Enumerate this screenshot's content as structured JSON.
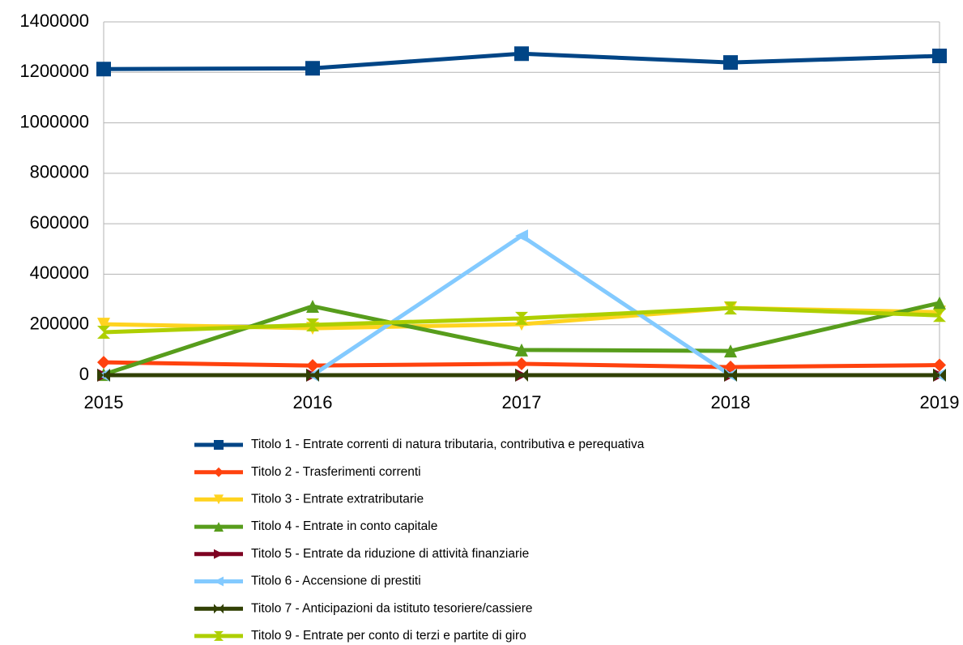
{
  "chart_data": {
    "type": "line",
    "x": [
      "2015",
      "2016",
      "2017",
      "2018",
      "2019"
    ],
    "ylim": [
      0,
      1400000
    ],
    "yticks": [
      0,
      200000,
      400000,
      600000,
      800000,
      1000000,
      1200000,
      1400000
    ],
    "grid": true,
    "legend": "bottom",
    "series": [
      {
        "name": "Titolo 1 - Entrate correnti di natura tributaria, contributiva e perequativa",
        "color": "#004586",
        "marker": "square",
        "values": [
          1213000,
          1216000,
          1274000,
          1239000,
          1265000
        ]
      },
      {
        "name": "Titolo 2 - Trasferimenti correnti",
        "color": "#ff420e",
        "marker": "diamond",
        "values": [
          51000,
          38000,
          45000,
          32000,
          40000
        ]
      },
      {
        "name": "Titolo 3 - Entrate extratributarie",
        "color": "#ffd320",
        "marker": "triangle-down",
        "values": [
          202000,
          186000,
          202000,
          266000,
          250000
        ]
      },
      {
        "name": "Titolo 4 - Entrate in conto capitale",
        "color": "#579d1c",
        "marker": "triangle-up",
        "values": [
          3000,
          273000,
          100000,
          96000,
          286000
        ]
      },
      {
        "name": "Titolo 5 - Entrate da riduzione di attività finanziarie",
        "color": "#7e0021",
        "marker": "triangle-right",
        "values": [
          0,
          0,
          0,
          0,
          0
        ]
      },
      {
        "name": "Titolo 6 - Accensione di prestiti",
        "color": "#83caff",
        "marker": "triangle-left",
        "values": [
          0,
          0,
          552000,
          0,
          0
        ]
      },
      {
        "name": "Titolo 7 - Anticipazioni da istituto tesoriere/cassiere",
        "color": "#314004",
        "marker": "bowtie",
        "values": [
          0,
          0,
          0,
          0,
          0
        ]
      },
      {
        "name": "Titolo 9 - Entrate per conto di terzi e partite di giro",
        "color": "#aecf00",
        "marker": "hourglass",
        "values": [
          170000,
          199000,
          225000,
          266000,
          237000
        ]
      }
    ]
  }
}
